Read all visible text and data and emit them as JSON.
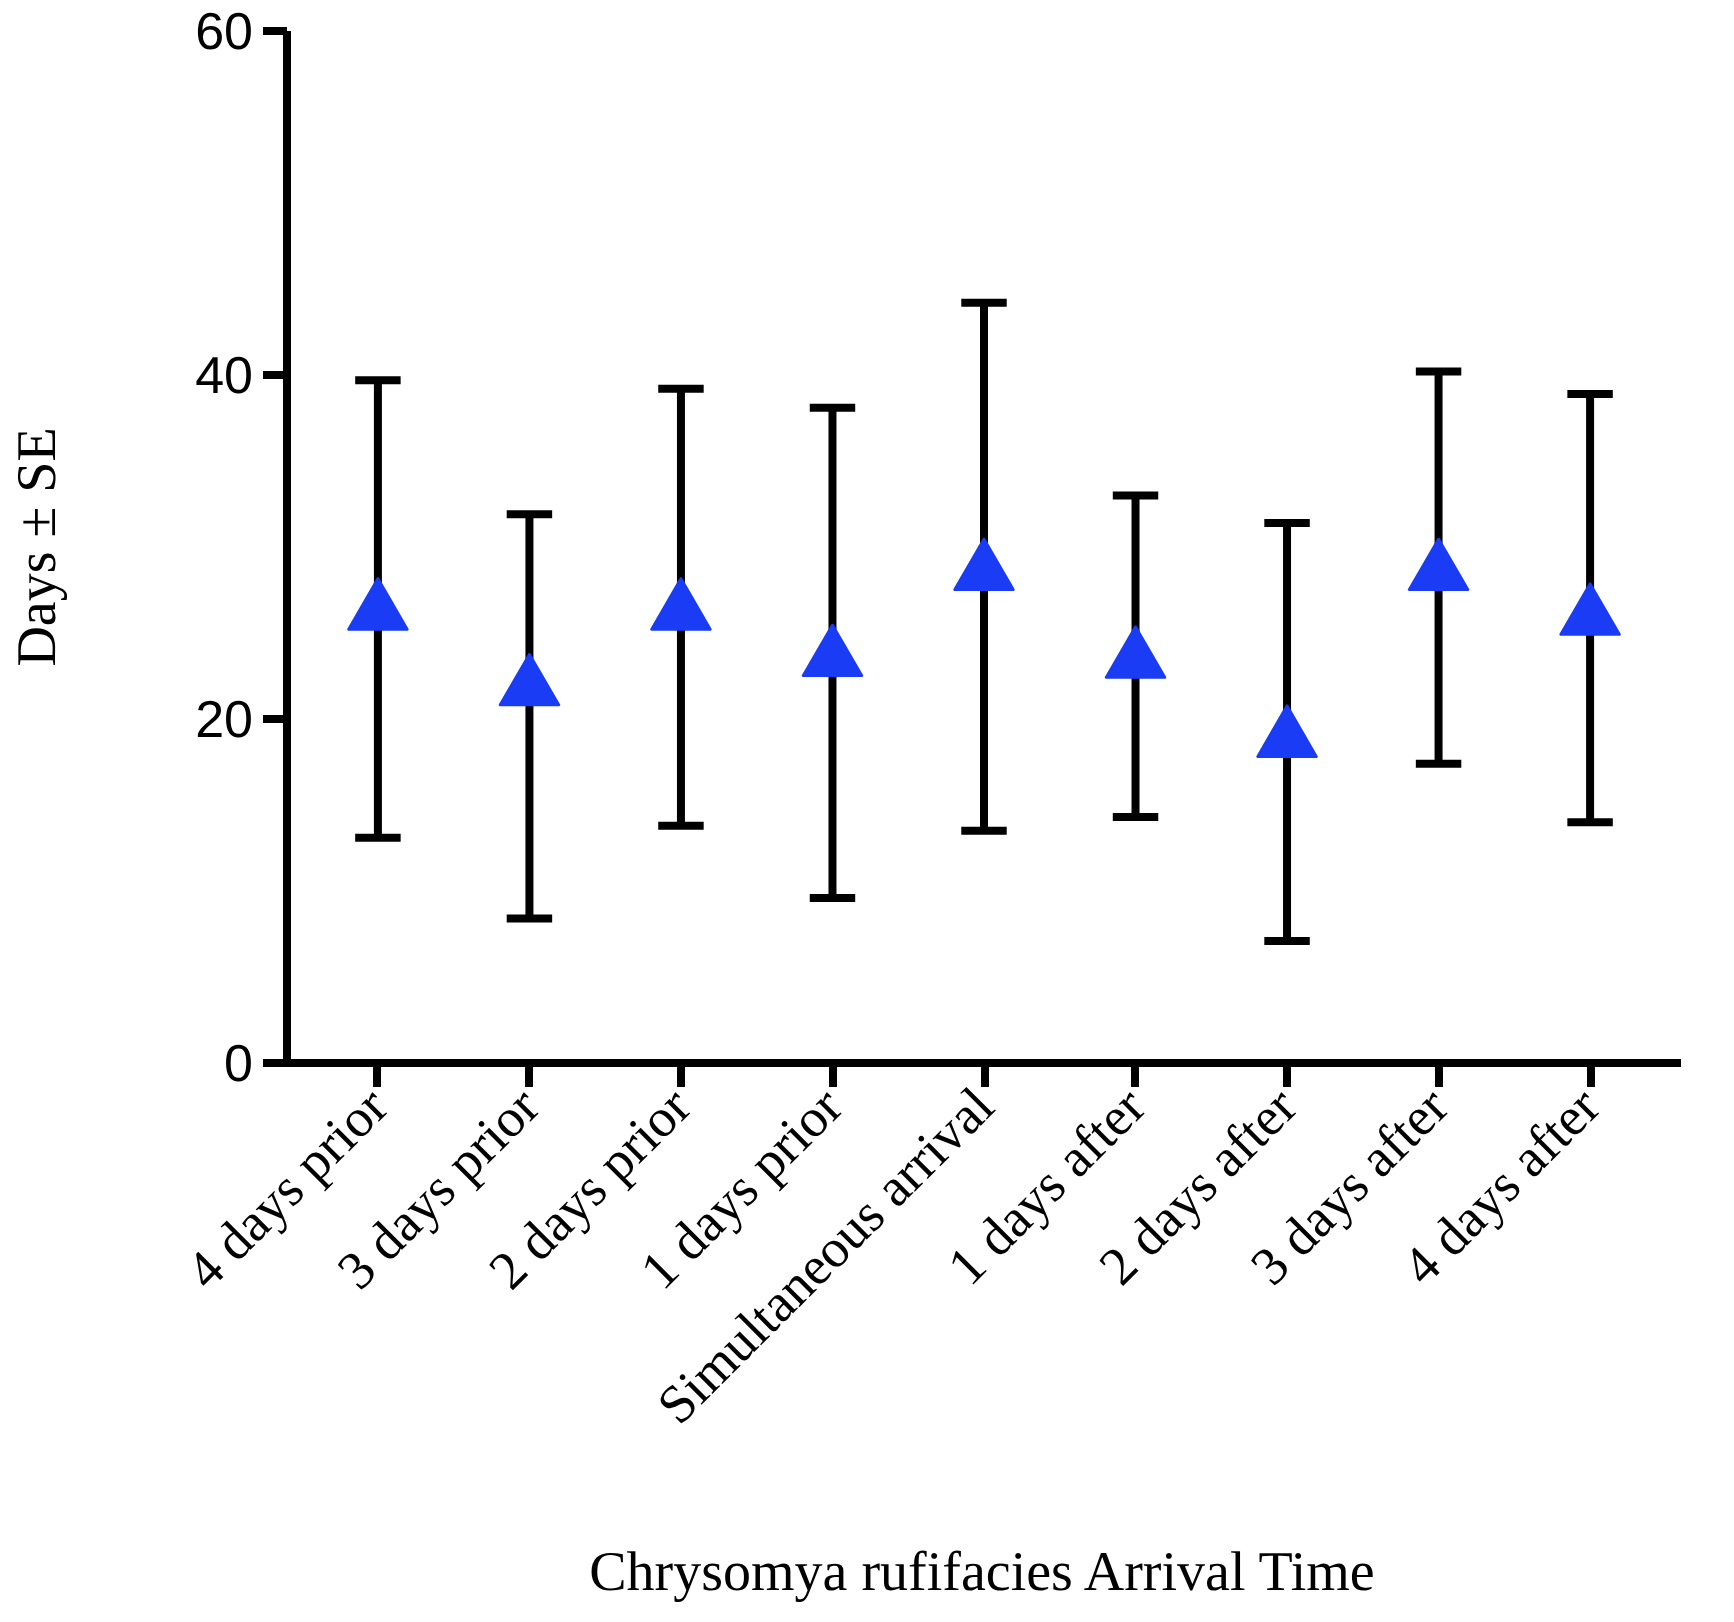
{
  "chart_data": {
    "type": "scatter",
    "xlabel": "Chrysomya rufifacies Arrival Time",
    "ylabel": "Days ± SE",
    "categories": [
      "4 days prior",
      "3 days prior",
      "2 days prior",
      "1 days prior",
      "Simultaneous arrival",
      "1 days after",
      "2 days after",
      "3 days after",
      "4 days after"
    ],
    "series": [
      {
        "color": "#1a3cf5",
        "values": [
          26.2,
          21.8,
          26.2,
          23.5,
          28.5,
          23.4,
          18.8,
          28.5,
          25.9
        ],
        "errors": [
          [
            13.1,
            39.7
          ],
          [
            8.4,
            31.9
          ],
          [
            13.8,
            39.2
          ],
          [
            9.6,
            38.1
          ],
          [
            13.5,
            44.2
          ],
          [
            14.3,
            33.0
          ],
          [
            7.1,
            31.4
          ],
          [
            17.4,
            40.2
          ],
          [
            14.0,
            38.9
          ]
        ]
      }
    ],
    "ylim": [
      0,
      60
    ],
    "yticks": [
      0,
      20,
      40,
      60
    ],
    "grid": false,
    "marker": "triangle"
  }
}
